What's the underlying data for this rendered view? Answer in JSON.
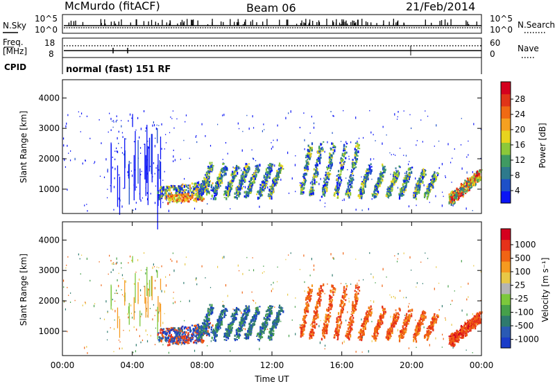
{
  "header": {
    "station": "McMurdo (fitACF)",
    "beam": "Beam 06",
    "date": "21/Feb/2014"
  },
  "top_panels": {
    "noise": {
      "left_label": "N.Sky",
      "right_label": "N.Search",
      "left_ticks": [
        "10^5",
        "10^0"
      ],
      "right_ticks": [
        "10^5",
        "10^0"
      ]
    },
    "freq": {
      "left_label_1": "Freq.",
      "left_label_2": "[MHz]",
      "right_label": "Nave",
      "left_ticks": [
        "18",
        "8"
      ],
      "right_ticks": [
        "60",
        "0"
      ]
    },
    "cpid": {
      "label": "CPID",
      "text": "normal (fast) 151 RF"
    }
  },
  "chart_data": [
    {
      "type": "heatmap",
      "name": "Power",
      "ylabel": "Slant Range [km]",
      "xlabel": "",
      "ylim": [
        200,
        4600
      ],
      "yticks": [
        "1000",
        "2000",
        "3000",
        "4000"
      ],
      "ytick_values": [
        1000,
        2000,
        3000,
        4000
      ],
      "xlim_hours": [
        0,
        24
      ],
      "colorbar": {
        "label": "Power [dB]",
        "ticks": [
          "4",
          "8",
          "12",
          "16",
          "20",
          "24",
          "28"
        ],
        "colors": [
          "#0a14f5",
          "#1e50c8",
          "#2e7a8c",
          "#3f9a62",
          "#8cc83a",
          "#e8d41e",
          "#f5a020",
          "#f06a14",
          "#e03418",
          "#d4001e"
        ]
      }
    },
    {
      "type": "heatmap",
      "name": "Velocity",
      "ylabel": "Slant Range [km]",
      "xlabel": "Time UT",
      "ylim": [
        200,
        4600
      ],
      "yticks": [
        "1000",
        "2000",
        "3000",
        "4000"
      ],
      "ytick_values": [
        1000,
        2000,
        3000,
        4000
      ],
      "xlim_hours": [
        0,
        24
      ],
      "xticks": [
        "00:00",
        "04:00",
        "08:00",
        "12:00",
        "16:00",
        "20:00",
        "00:00"
      ],
      "xtick_values": [
        0,
        4,
        8,
        12,
        16,
        20,
        24
      ],
      "colorbar": {
        "label": "Velocity [m s⁻¹]",
        "ticks": [
          "1000",
          "500",
          "100",
          "25",
          "-25",
          "-100",
          "-500",
          "-1000"
        ],
        "colors": [
          "#1a3cc8",
          "#2a5ab4",
          "#2e7a6e",
          "#46a04a",
          "#7cc83c",
          "#b4b4b4",
          "#e8c846",
          "#f59a20",
          "#f06414",
          "#e6321a",
          "#d4001e"
        ]
      }
    }
  ]
}
